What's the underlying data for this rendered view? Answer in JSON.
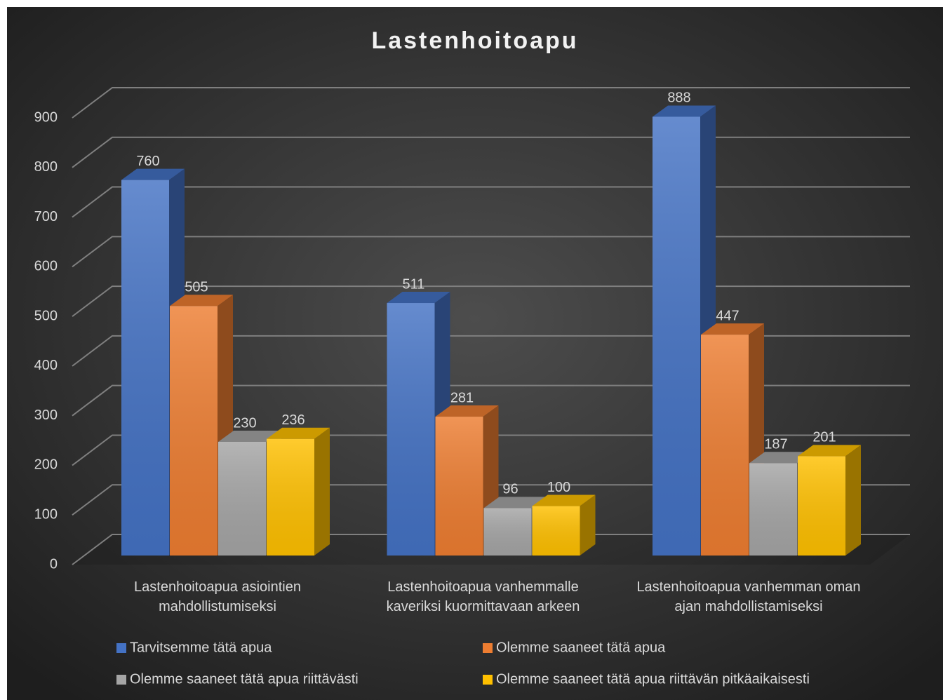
{
  "chart_data": {
    "type": "bar3d",
    "title": "Lastenhoitoapu",
    "categories": [
      "Lastenhoitoapua asiointien mahdollistumiseksi",
      "Lastenhoitoapua vanhemmalle kaveriksi kuormittavaan arkeen",
      "Lastenhoitoapua vanhemman oman ajan mahdollistamiseksi"
    ],
    "series": [
      {
        "name": "Tarvitsemme tätä apua",
        "color": "#4472c4",
        "values": [
          760,
          511,
          888
        ]
      },
      {
        "name": "Olemme saaneet tätä apua",
        "color": "#ed7d31",
        "values": [
          505,
          281,
          447
        ]
      },
      {
        "name": "Olemme saaneet tätä apua riittävästi",
        "color": "#a5a5a5",
        "values": [
          230,
          96,
          187
        ]
      },
      {
        "name": "Olemme saaneet tätä apua riittävän pitkäaikaisesti",
        "color": "#ffc000",
        "values": [
          236,
          100,
          201
        ]
      }
    ],
    "ylim": [
      0,
      900
    ],
    "yticks": [
      0,
      100,
      200,
      300,
      400,
      500,
      600,
      700,
      800,
      900
    ],
    "grid": true,
    "legend": "bottom"
  }
}
